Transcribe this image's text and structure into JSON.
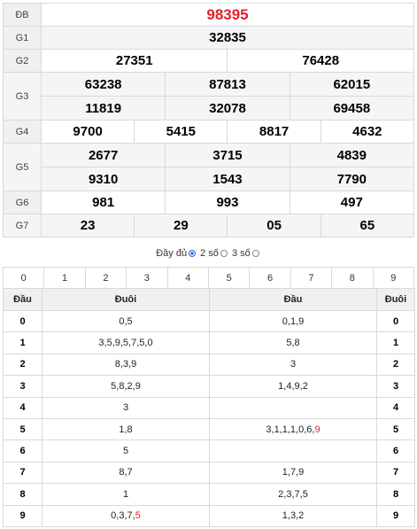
{
  "results": {
    "db": {
      "label": "ĐB",
      "values": [
        "98395"
      ]
    },
    "g1": {
      "label": "G1",
      "values": [
        "32835"
      ]
    },
    "g2": {
      "label": "G2",
      "values": [
        "27351",
        "76428"
      ]
    },
    "g3": {
      "label": "G3",
      "values": [
        "63238",
        "87813",
        "62015",
        "11819",
        "32078",
        "69458"
      ]
    },
    "g4": {
      "label": "G4",
      "values": [
        "9700",
        "5415",
        "8817",
        "4632"
      ]
    },
    "g5": {
      "label": "G5",
      "values": [
        "2677",
        "3715",
        "4839",
        "9310",
        "1543",
        "7790"
      ]
    },
    "g6": {
      "label": "G6",
      "values": [
        "981",
        "993",
        "497"
      ]
    },
    "g7": {
      "label": "G7",
      "values": [
        "23",
        "29",
        "05",
        "65"
      ]
    }
  },
  "filter": {
    "full": "Đầy đủ",
    "two": "2 số",
    "three": "3 số",
    "selected": "full"
  },
  "digit_bar": [
    "0",
    "1",
    "2",
    "3",
    "4",
    "5",
    "6",
    "7",
    "8",
    "9"
  ],
  "loto": {
    "headers": {
      "dau_left": "Đầu",
      "duoi_left": "Đuôi",
      "dau_right": "Đầu",
      "duoi_right": "Đuôi"
    },
    "rows": [
      {
        "key": "0",
        "duoi": [
          {
            "t": "0,5"
          }
        ],
        "dau": [
          {
            "t": "0,1,9"
          }
        ]
      },
      {
        "key": "1",
        "duoi": [
          {
            "t": "3,5,9,5,7,5,0"
          }
        ],
        "dau": [
          {
            "t": "5,8"
          }
        ]
      },
      {
        "key": "2",
        "duoi": [
          {
            "t": "8,3,9"
          }
        ],
        "dau": [
          {
            "t": "3"
          }
        ]
      },
      {
        "key": "3",
        "duoi": [
          {
            "t": "5,8,2,9"
          }
        ],
        "dau": [
          {
            "t": "1,4,9,2"
          }
        ]
      },
      {
        "key": "4",
        "duoi": [
          {
            "t": "3"
          }
        ],
        "dau": []
      },
      {
        "key": "5",
        "duoi": [
          {
            "t": "1,8"
          }
        ],
        "dau": [
          {
            "t": "3,1,1,1,0,6,"
          },
          {
            "t": "9",
            "red": true
          }
        ]
      },
      {
        "key": "6",
        "duoi": [
          {
            "t": "5"
          }
        ],
        "dau": []
      },
      {
        "key": "7",
        "duoi": [
          {
            "t": "8,7"
          }
        ],
        "dau": [
          {
            "t": "1,7,9"
          }
        ]
      },
      {
        "key": "8",
        "duoi": [
          {
            "t": "1"
          }
        ],
        "dau": [
          {
            "t": "2,3,7,5"
          }
        ]
      },
      {
        "key": "9",
        "duoi": [
          {
            "t": "0,3,7,"
          },
          {
            "t": "5",
            "red": true
          }
        ],
        "dau": [
          {
            "t": "1,3,2"
          }
        ]
      }
    ]
  },
  "colors": {
    "special": "#e0202a",
    "label_bg": "#f0f0f0",
    "border": "#d9d9d9",
    "radio": "#2a6ad1"
  }
}
